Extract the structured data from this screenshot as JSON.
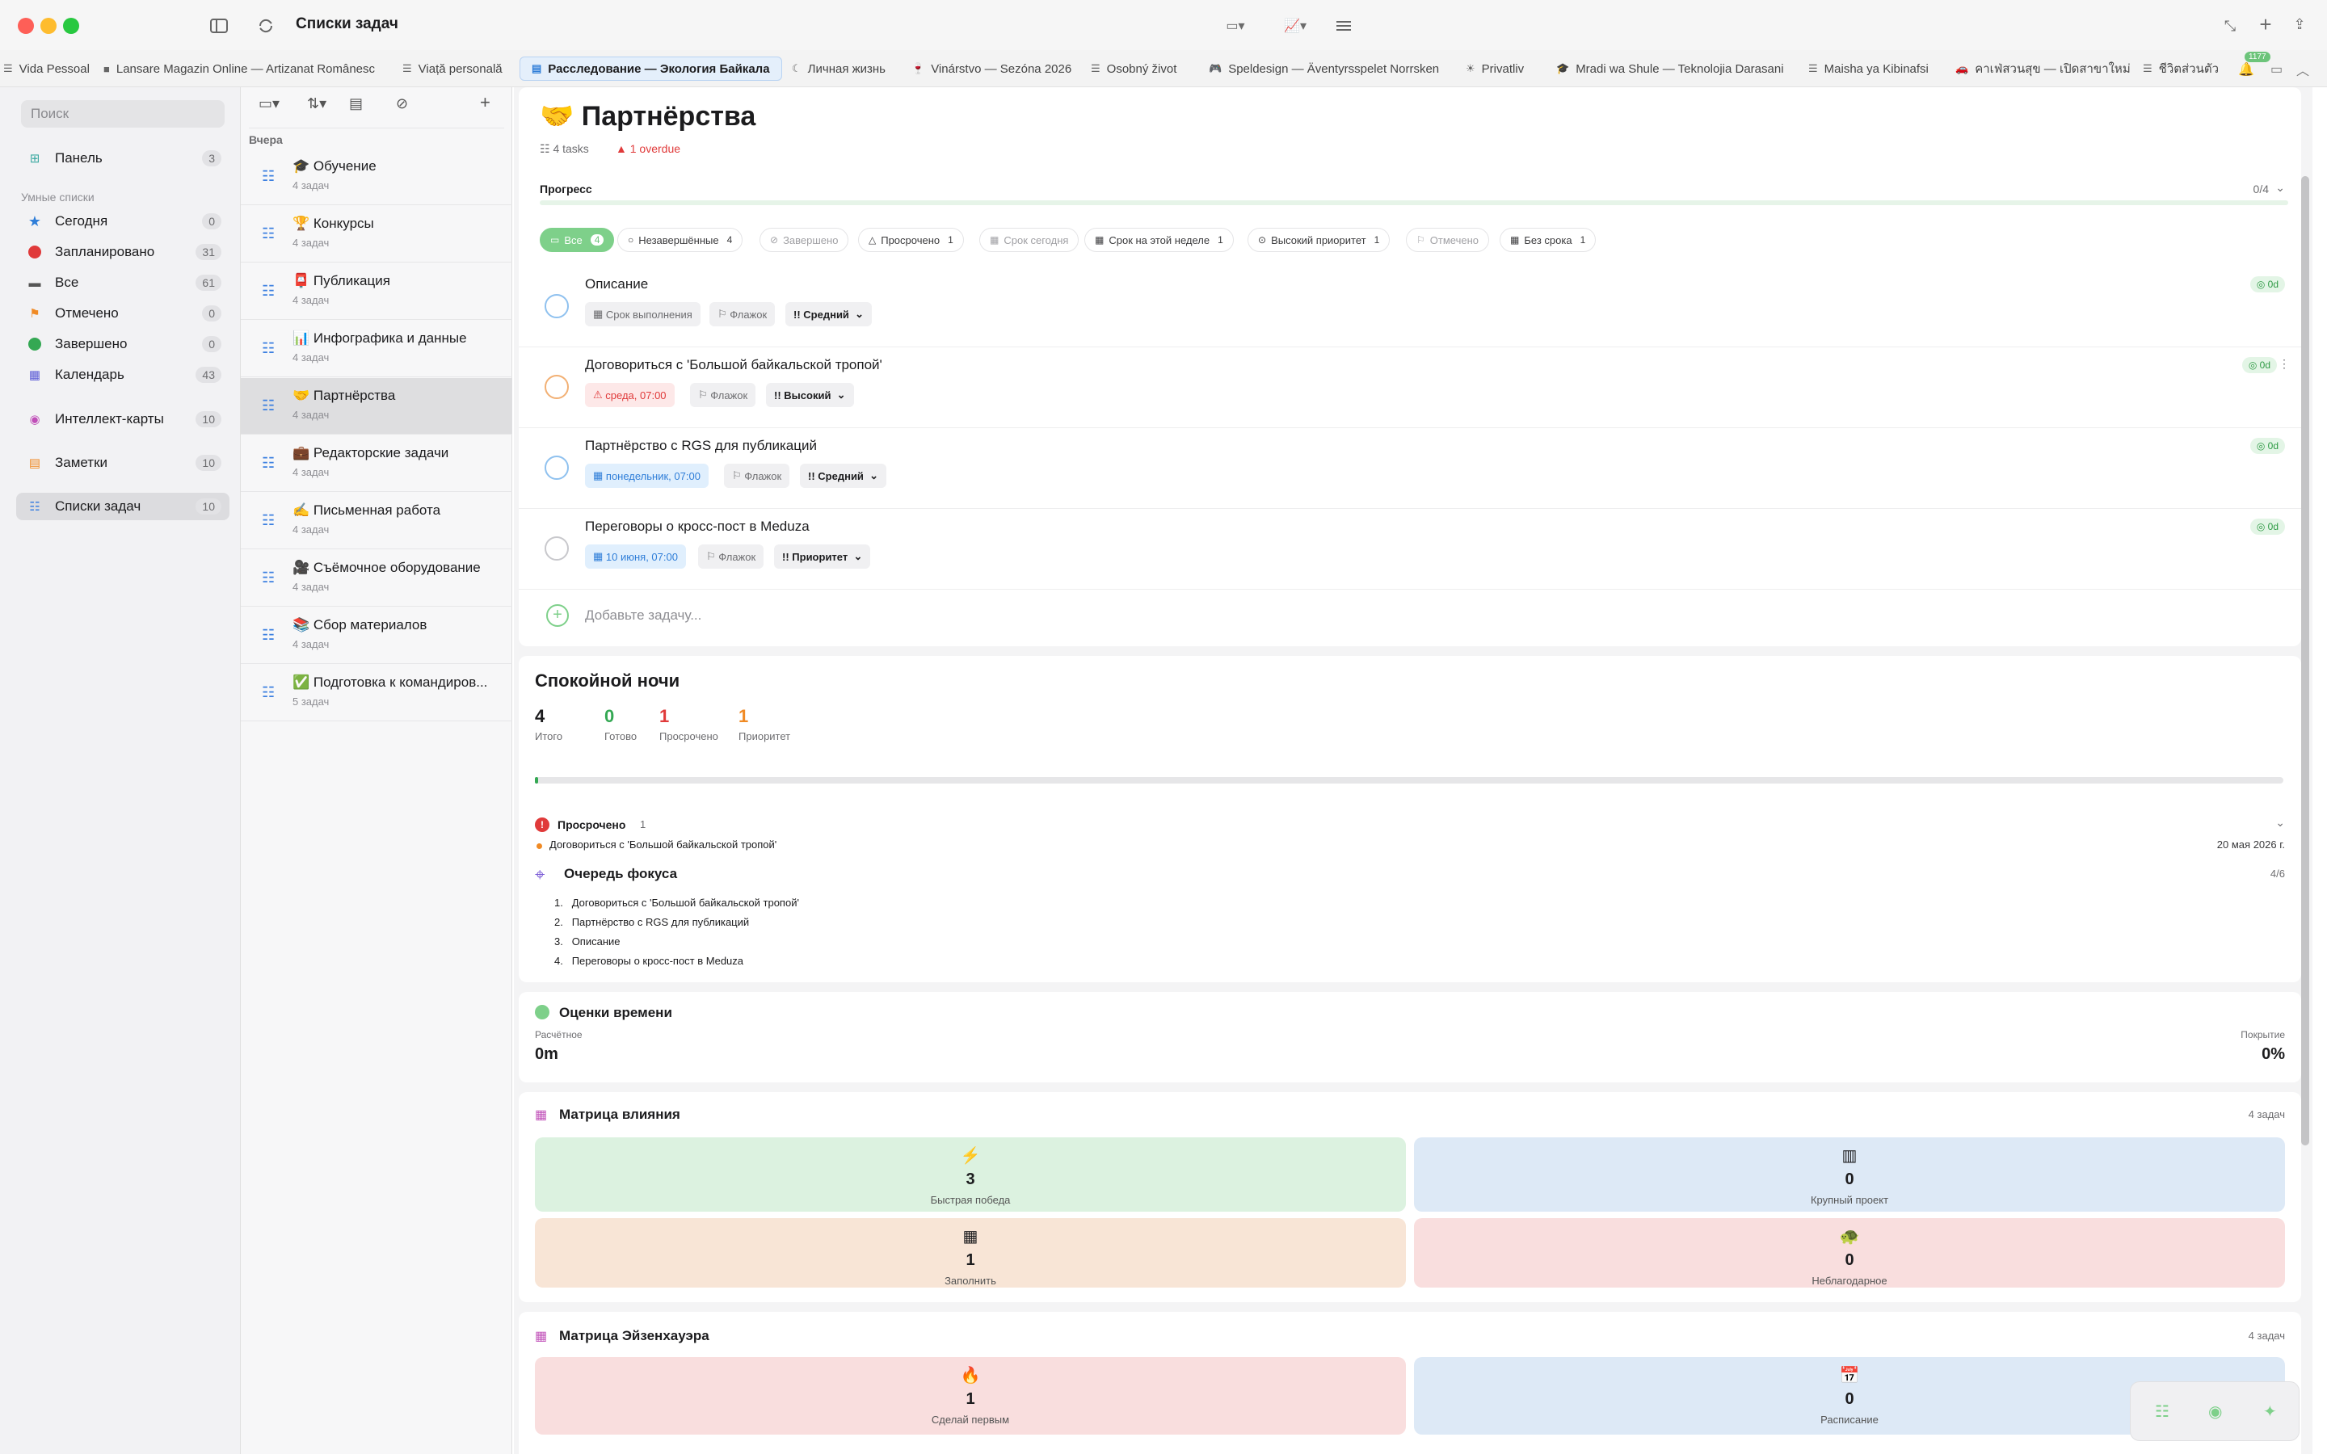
{
  "window": {
    "title": "Списки задач"
  },
  "tabs": [
    {
      "label": "Vida Pessoal",
      "icon": "list-icon"
    },
    {
      "label": "Lansare Magazin Online — Artizanat Românesc",
      "icon": "briefcase-icon"
    },
    {
      "label": "Viață personală",
      "icon": "list-icon"
    },
    {
      "label": "Расследование — Экология Байкала",
      "icon": "doc-icon",
      "active": true
    },
    {
      "label": "Личная жизнь",
      "icon": "moon-icon"
    },
    {
      "label": "Vinárstvo — Sezóna 2026",
      "icon": "wine-icon"
    },
    {
      "label": "Osobný život",
      "icon": "list-icon"
    },
    {
      "label": "Speldesign — Äventyrsspelet Norrsken",
      "icon": "gamepad-icon"
    },
    {
      "label": "Privatliv",
      "icon": "sun-icon"
    },
    {
      "label": "Mradi wa Shule — Teknolojia Darasani",
      "icon": "graduation-icon"
    },
    {
      "label": "Maisha ya Kibinafsi",
      "icon": "list-icon"
    },
    {
      "label": "คาเฟ่สวนสุข — เปิดสาขาใหม่",
      "icon": "car-icon"
    },
    {
      "label": "ชีวิตส่วนตัว",
      "icon": "list-icon"
    }
  ],
  "notifications_count": "1177",
  "sidebar": {
    "search_placeholder": "Поиск",
    "panel": {
      "label": "Панель",
      "count": "3"
    },
    "smart_header": "Умные списки",
    "smart": [
      {
        "label": "Сегодня",
        "count": "0",
        "color": "#2f7ed8",
        "icon": "star-icon"
      },
      {
        "label": "Запланировано",
        "count": "31",
        "color": "#e03a3a",
        "icon": "clock-icon"
      },
      {
        "label": "Все",
        "count": "61",
        "color": "#555555",
        "icon": "tray-icon"
      },
      {
        "label": "Отмечено",
        "count": "0",
        "color": "#f08a24",
        "icon": "flag-icon"
      },
      {
        "label": "Завершено",
        "count": "0",
        "color": "#34a853",
        "icon": "check-icon"
      },
      {
        "label": "Календарь",
        "count": "43",
        "color": "#5b5bd6",
        "icon": "calendar-icon"
      }
    ],
    "mindmaps": {
      "label": "Интеллект-карты",
      "count": "10"
    },
    "notes": {
      "label": "Заметки",
      "count": "10"
    },
    "tasklists": {
      "label": "Списки задач",
      "count": "10"
    }
  },
  "list_column": {
    "group": "Вчера",
    "items": [
      {
        "emoji": "🎓",
        "title": "Обучение",
        "sub": "4 задач"
      },
      {
        "emoji": "🏆",
        "title": "Конкурсы",
        "sub": "4 задач"
      },
      {
        "emoji": "📮",
        "title": "Публикация",
        "sub": "4 задач"
      },
      {
        "emoji": "📊",
        "title": "Инфографика и данные",
        "sub": "4 задач"
      },
      {
        "emoji": "🤝",
        "title": "Партнёрства",
        "sub": "4 задач",
        "selected": true
      },
      {
        "emoji": "💼",
        "title": "Редакторские задачи",
        "sub": "4 задач"
      },
      {
        "emoji": "✍️",
        "title": "Письменная работа",
        "sub": "4 задач"
      },
      {
        "emoji": "🎥",
        "title": "Съёмочное оборудование",
        "sub": "4 задач"
      },
      {
        "emoji": "📚",
        "title": "Сбор материалов",
        "sub": "4 задач"
      },
      {
        "emoji": "✅",
        "title": "Подготовка к командиров...",
        "sub": "5 задач"
      }
    ]
  },
  "main": {
    "emoji": "🤝",
    "title": "Партнёрства",
    "tasks_meta": "4 tasks",
    "overdue_meta": "1 overdue",
    "progress_label": "Прогресс",
    "progress_value": "0/4",
    "filters": [
      {
        "label": "Все",
        "count": "4",
        "active": true
      },
      {
        "label": "Незавершённые",
        "count": "4"
      },
      {
        "label": "Завершено",
        "count": "",
        "muted": true
      },
      {
        "label": "Просрочено",
        "count": "1"
      },
      {
        "label": "Срок сегодня",
        "count": "",
        "muted": true
      },
      {
        "label": "Срок на этой неделе",
        "count": "1"
      },
      {
        "label": "Высокий приоритет",
        "count": "1"
      },
      {
        "label": "Отмечено",
        "count": "",
        "muted": true
      },
      {
        "label": "Без срока",
        "count": "1"
      }
    ],
    "tasks": [
      {
        "title": "Описание",
        "date": "Срок выполнения",
        "flag": "Флажок",
        "priority": "Средний",
        "badge": "0d"
      },
      {
        "title": "Договориться с 'Большой байкальской тропой'",
        "date": "среда, 07:00",
        "flag": "Флажок",
        "priority": "Высокий",
        "badge": "0d"
      },
      {
        "title": "Партнёрство с RGS для публикаций",
        "date": "понедельник, 07:00",
        "flag": "Флажок",
        "priority": "Средний",
        "badge": "0d"
      },
      {
        "title": "Переговоры о кросс-пост в Meduza",
        "date": "10 июня, 07:00",
        "flag": "Флажок",
        "priority": "Приоритет",
        "badge": "0d"
      }
    ],
    "add_placeholder": "Добавьте задачу..."
  },
  "summary": {
    "title": "Спокойной ночи",
    "stats": [
      {
        "value": "4",
        "label": "Итого",
        "color": "#1c1c1e"
      },
      {
        "value": "0",
        "label": "Готово",
        "color": "#34a853"
      },
      {
        "value": "1",
        "label": "Просрочено",
        "color": "#e03a3a"
      },
      {
        "value": "1",
        "label": "Приоритет",
        "color": "#f08a24"
      }
    ],
    "overdue_label": "Просрочено",
    "overdue_count": "1",
    "overdue_item": "Договориться с 'Большой байкальской тропой'",
    "overdue_date": "20 мая 2026 г."
  },
  "focus": {
    "title": "Очередь фокуса",
    "count": "4/6",
    "items": [
      "Договориться с 'Большой байкальской тропой'",
      "Партнёрство с RGS для публикаций",
      "Описание",
      "Переговоры о кросс-пост в Meduza"
    ]
  },
  "estimates": {
    "title": "Оценки времени",
    "est_label": "Расчётное",
    "est_value": "0m",
    "cov_label": "Покрытие",
    "cov_value": "0%"
  },
  "impact": {
    "title": "Матрица влияния",
    "count": "4 задач",
    "quads": [
      {
        "value": "3",
        "label": "Быстрая победа",
        "icon": "bolt-icon"
      },
      {
        "value": "0",
        "label": "Крупный проект",
        "icon": "building-icon"
      },
      {
        "value": "1",
        "label": "Заполнить",
        "icon": "grid-icon"
      },
      {
        "value": "0",
        "label": "Неблагодарное",
        "icon": "turtle-icon"
      }
    ]
  },
  "eisenhower": {
    "title": "Матрица Эйзенхауэра",
    "count": "4 задач",
    "quads": [
      {
        "value": "1",
        "label": "Сделай первым",
        "icon": "fire-icon"
      },
      {
        "value": "0",
        "label": "Расписание",
        "icon": "calendar-icon"
      }
    ]
  }
}
